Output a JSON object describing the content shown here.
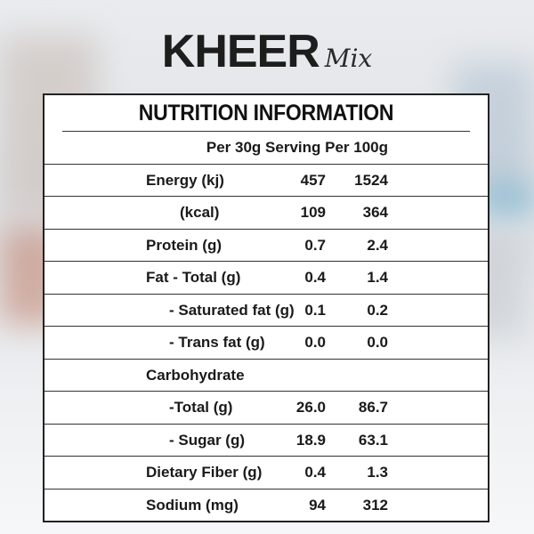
{
  "brand": {
    "main": "KHEER",
    "script": "Mix"
  },
  "table": {
    "title": "NUTRITION INFORMATION",
    "header": "Per 30g Serving Per 100g",
    "rows": [
      {
        "label": "Energy (kj)",
        "per_serving": "457",
        "per_100g": "1524"
      },
      {
        "label": "(kcal)",
        "per_serving": "109",
        "per_100g": "364"
      },
      {
        "label": "Protein (g)",
        "per_serving": "0.7",
        "per_100g": "2.4"
      },
      {
        "label": "Fat - Total (g)",
        "per_serving": "0.4",
        "per_100g": "1.4"
      },
      {
        "label": "- Saturated fat (g)",
        "per_serving": "0.1",
        "per_100g": "0.2"
      },
      {
        "label": "- Trans fat (g)",
        "per_serving": "0.0",
        "per_100g": "0.0"
      },
      {
        "label": "Carbohydrate",
        "per_serving": "",
        "per_100g": ""
      },
      {
        "label": "-Total (g)",
        "per_serving": "26.0",
        "per_100g": "86.7"
      },
      {
        "label": "- Sugar (g)",
        "per_serving": "18.9",
        "per_100g": "63.1"
      },
      {
        "label": "Dietary Fiber (g)",
        "per_serving": "0.4",
        "per_100g": "1.3"
      },
      {
        "label": "Sodium (mg)",
        "per_serving": "94",
        "per_100g": "312"
      }
    ]
  }
}
